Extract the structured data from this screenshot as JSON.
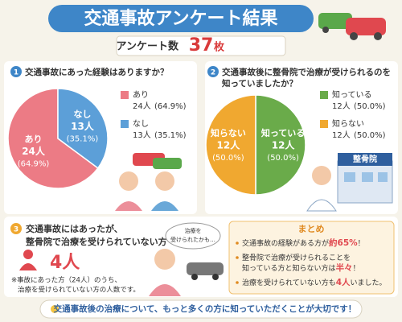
{
  "header": {
    "title": "交通事故アンケート結果",
    "survey_label": "アンケート数",
    "survey_count": 37,
    "survey_unit": "枚"
  },
  "chart_data": [
    {
      "type": "pie",
      "number": "1",
      "title": [
        "交通事故にあった経験はありますか？"
      ],
      "categories": [
        "あり",
        "なし"
      ],
      "values": [
        24,
        13
      ],
      "value_labels": [
        "24人",
        "13人"
      ],
      "percent_labels": [
        "(64.9%)",
        "(35.1%)"
      ],
      "colors": [
        "#ec7b85",
        "#5c9fd8"
      ]
    },
    {
      "type": "pie",
      "number": "2",
      "title": [
        "交通事故後に整骨院で治療が受けられるのを",
        "知っていましたか？"
      ],
      "categories": [
        "知っている",
        "知らない"
      ],
      "values": [
        12,
        12
      ],
      "value_labels": [
        "12人",
        "12人"
      ],
      "percent_labels": [
        "(50.0%)",
        "(50.0%)"
      ],
      "colors": [
        "#6aab4a",
        "#f0a830"
      ]
    }
  ],
  "clinic_sign": "整骨院",
  "section3": {
    "number": "3",
    "title": [
      "交通事故にはあったが、",
      "整骨院で治療を受けられていない方"
    ],
    "count_label": "4人",
    "note": [
      "※事故にあった方（24人）のうち、",
      "治療を受けられていない方の人数です。"
    ],
    "bubble": [
      "治療を",
      "受けられたかも…"
    ]
  },
  "summary": {
    "title": "まとめ",
    "items": [
      [
        [
          "交通事故の経験がある方が",
          "約65%",
          "！"
        ]
      ],
      [
        [
          "整骨院で治療が受けられることを"
        ],
        [
          "知っている方と知らない方は",
          "半々",
          "！"
        ]
      ],
      [
        [
          "治療を受けられていない方も",
          "4人",
          "いました。"
        ]
      ]
    ]
  },
  "footer": "交通事故後の治療について、もっと多くの方に知っていただくことが大切です！"
}
